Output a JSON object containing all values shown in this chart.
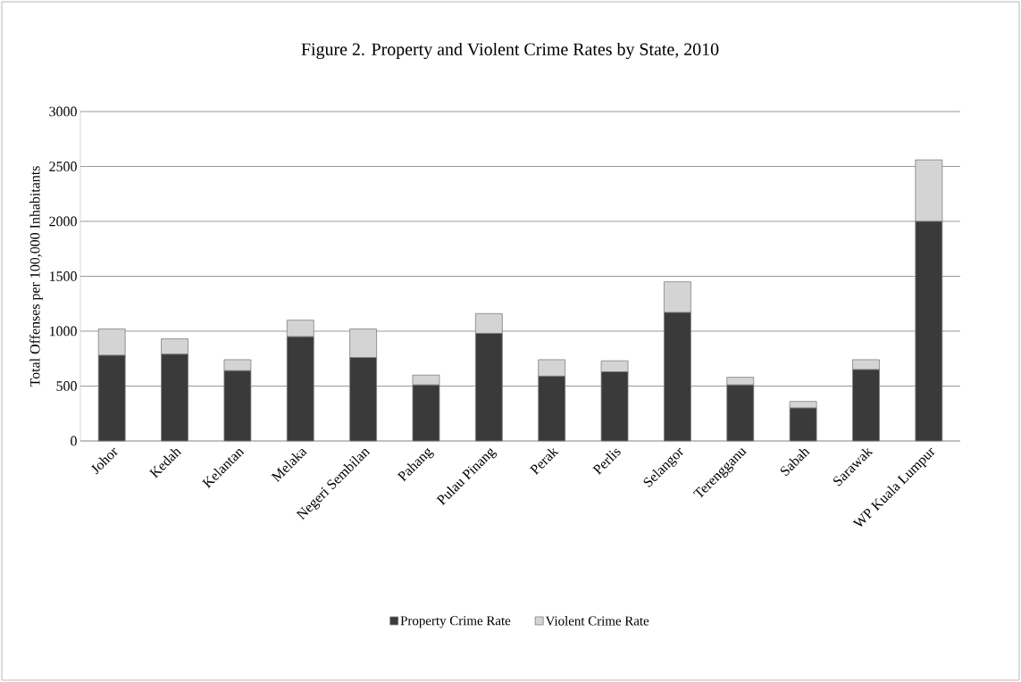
{
  "chart_data": {
    "type": "bar",
    "title": "Figure 2. Property and Violent Crime Rates by State, 2010",
    "ylabel": "Total Offenses per 100,000 Inhabitants",
    "categories": [
      "Johor",
      "Kedah",
      "Kelantan",
      "Melaka",
      "Negeri Sembilan",
      "Pahang",
      "Pulau Pinang",
      "Perak",
      "Perlis",
      "Selangor",
      "Terengganu",
      "Sabah",
      "Sarawak",
      "WP Kuala Lumpur"
    ],
    "stacked": true,
    "series": [
      {
        "name": "Property Crime Rate",
        "color": "#3a3a3a",
        "values": [
          780,
          790,
          640,
          950,
          760,
          510,
          980,
          590,
          630,
          1170,
          510,
          300,
          650,
          2000
        ]
      },
      {
        "name": "Violent Crime Rate",
        "color": "#d4d4d4",
        "values": [
          240,
          140,
          100,
          150,
          260,
          90,
          180,
          150,
          100,
          280,
          70,
          60,
          90,
          560
        ]
      }
    ],
    "ylim": [
      0,
      3000
    ],
    "yticks": [
      0,
      500,
      1000,
      1500,
      2000,
      2500,
      3000
    ],
    "grid": "y",
    "legend": "bottom"
  }
}
